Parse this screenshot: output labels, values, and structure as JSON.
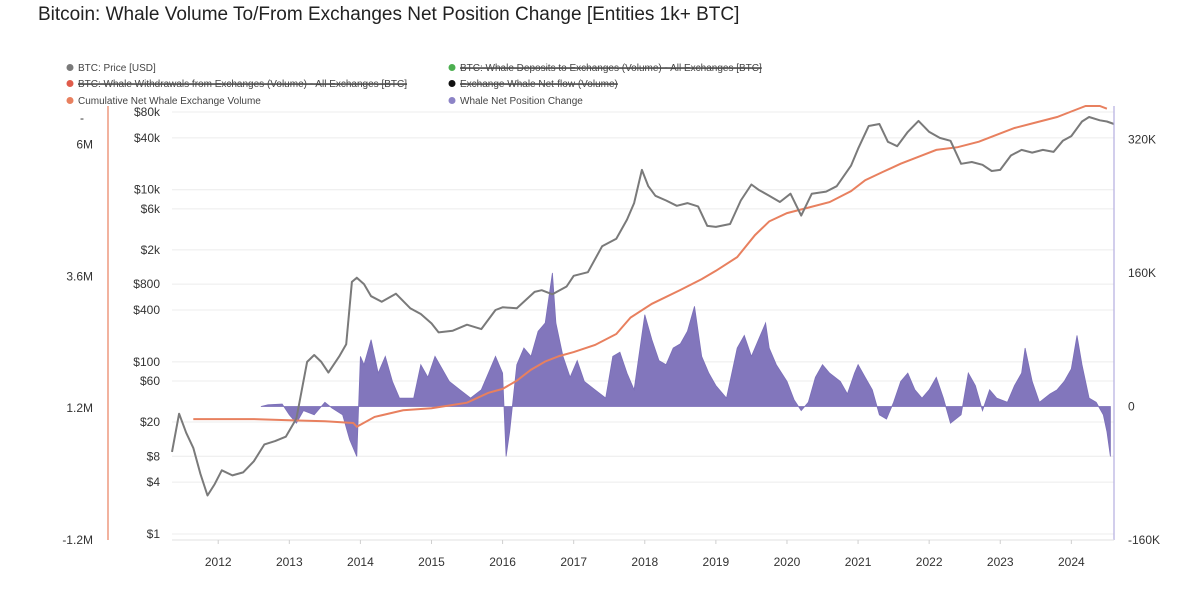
{
  "title": "Bitcoin: Whale Volume To/From Exchanges Net Position Change [Entities 1k+ BTC]",
  "colors": {
    "price": "#7a7a7a",
    "deposits": "#4caf50",
    "withdrawals": "#e05c4b",
    "netflow": "#111111",
    "cumulative": "#e8805f",
    "net_position": "#7b6fb8",
    "axis_line_left": "#e8805f",
    "axis_line_right": "#b4aee0"
  },
  "legend": [
    {
      "label": "BTC: Price [USD]",
      "color": "#7a7a7a",
      "struck": false
    },
    {
      "label": "BTC: Whale Deposits to Exchanges (Volume) - All Exchanges [BTC]",
      "color": "#4caf50",
      "struck": true
    },
    {
      "label": "BTC: Whale Withdrawals from Exchanges (Volume) - All Exchanges [BTC]",
      "color": "#e05c4b",
      "struck": true
    },
    {
      "label": "Exchange Whale Net-flow (Volume)",
      "color": "#111111",
      "struck": true
    },
    {
      "label": "Cumulative Net Whale Exchange Volume",
      "color": "#e8805f",
      "struck": false
    },
    {
      "label": "Whale Net Position Change",
      "color": "#8c83c6",
      "struck": false
    }
  ],
  "chart_data": {
    "type": "line",
    "title": "Bitcoin: Whale Volume To/From Exchanges Net Position Change [Entities 1k+ BTC]",
    "x_ticks": [
      "2012",
      "2013",
      "2014",
      "2015",
      "2016",
      "2017",
      "2018",
      "2019",
      "2020",
      "2021",
      "2022",
      "2023",
      "2024"
    ],
    "xlim": [
      2011.35,
      2024.6
    ],
    "axes": {
      "left_outer": {
        "ticks": [
          "6M",
          "3.6M",
          "1.2M",
          "-1.2M"
        ],
        "values": [
          6000000,
          3600000,
          1200000,
          -1200000
        ],
        "ylim": [
          -1200000,
          6700000
        ],
        "extra_label": "-"
      },
      "left_price": {
        "scale": "log",
        "ticks": [
          "$80k",
          "$40k",
          "$10k",
          "$6k",
          "$2k",
          "$800",
          "$400",
          "$100",
          "$60",
          "$20",
          "$8",
          "$4",
          "$1"
        ],
        "values": [
          80000,
          40000,
          10000,
          6000,
          2000,
          800,
          400,
          100,
          60,
          20,
          8,
          4,
          1
        ],
        "ylim": [
          1,
          80000
        ]
      },
      "right": {
        "ticks": [
          "320K",
          "160K",
          "0",
          "-160K"
        ],
        "values": [
          320000,
          160000,
          0,
          -160000
        ],
        "ylim": [
          -160000,
          360000
        ]
      }
    },
    "series": [
      {
        "name": "BTC: Price [USD]",
        "axis": "left_price",
        "points": [
          [
            2011.35,
            9
          ],
          [
            2011.45,
            25
          ],
          [
            2011.55,
            15
          ],
          [
            2011.65,
            10
          ],
          [
            2011.75,
            5
          ],
          [
            2011.85,
            2.8
          ],
          [
            2011.95,
            3.8
          ],
          [
            2012.05,
            5.5
          ],
          [
            2012.2,
            4.8
          ],
          [
            2012.35,
            5.2
          ],
          [
            2012.5,
            7
          ],
          [
            2012.65,
            11
          ],
          [
            2012.8,
            12
          ],
          [
            2012.95,
            13.5
          ],
          [
            2013.1,
            22
          ],
          [
            2013.25,
            100
          ],
          [
            2013.35,
            120
          ],
          [
            2013.45,
            100
          ],
          [
            2013.55,
            75
          ],
          [
            2013.7,
            115
          ],
          [
            2013.8,
            160
          ],
          [
            2013.88,
            850
          ],
          [
            2013.95,
            950
          ],
          [
            2014.05,
            800
          ],
          [
            2014.15,
            580
          ],
          [
            2014.3,
            500
          ],
          [
            2014.5,
            620
          ],
          [
            2014.7,
            420
          ],
          [
            2014.85,
            360
          ],
          [
            2015.0,
            280
          ],
          [
            2015.1,
            220
          ],
          [
            2015.3,
            230
          ],
          [
            2015.5,
            270
          ],
          [
            2015.7,
            240
          ],
          [
            2015.9,
            400
          ],
          [
            2016.0,
            430
          ],
          [
            2016.2,
            420
          ],
          [
            2016.45,
            650
          ],
          [
            2016.55,
            680
          ],
          [
            2016.7,
            610
          ],
          [
            2016.9,
            750
          ],
          [
            2017.0,
            1000
          ],
          [
            2017.2,
            1100
          ],
          [
            2017.4,
            2200
          ],
          [
            2017.6,
            2700
          ],
          [
            2017.75,
            4500
          ],
          [
            2017.85,
            7000
          ],
          [
            2017.96,
            17000
          ],
          [
            2018.05,
            11000
          ],
          [
            2018.15,
            8500
          ],
          [
            2018.3,
            7500
          ],
          [
            2018.45,
            6500
          ],
          [
            2018.6,
            7000
          ],
          [
            2018.75,
            6400
          ],
          [
            2018.88,
            3800
          ],
          [
            2019.0,
            3700
          ],
          [
            2019.2,
            4000
          ],
          [
            2019.35,
            7500
          ],
          [
            2019.5,
            11500
          ],
          [
            2019.6,
            10000
          ],
          [
            2019.75,
            8500
          ],
          [
            2019.9,
            7200
          ],
          [
            2020.05,
            9000
          ],
          [
            2020.2,
            5000
          ],
          [
            2020.35,
            9000
          ],
          [
            2020.55,
            9500
          ],
          [
            2020.7,
            11000
          ],
          [
            2020.9,
            19000
          ],
          [
            2021.0,
            30000
          ],
          [
            2021.15,
            55000
          ],
          [
            2021.3,
            58000
          ],
          [
            2021.42,
            36000
          ],
          [
            2021.55,
            32000
          ],
          [
            2021.7,
            47000
          ],
          [
            2021.85,
            63000
          ],
          [
            2022.0,
            47000
          ],
          [
            2022.15,
            40000
          ],
          [
            2022.3,
            37000
          ],
          [
            2022.45,
            20000
          ],
          [
            2022.6,
            21000
          ],
          [
            2022.75,
            19500
          ],
          [
            2022.88,
            16500
          ],
          [
            2023.0,
            17000
          ],
          [
            2023.15,
            25000
          ],
          [
            2023.3,
            29000
          ],
          [
            2023.45,
            27000
          ],
          [
            2023.6,
            29000
          ],
          [
            2023.75,
            27500
          ],
          [
            2023.88,
            37000
          ],
          [
            2024.0,
            42000
          ],
          [
            2024.15,
            62000
          ],
          [
            2024.25,
            70000
          ],
          [
            2024.4,
            64000
          ],
          [
            2024.5,
            62000
          ],
          [
            2024.6,
            58000
          ]
        ]
      },
      {
        "name": "Cumulative Net Whale Exchange Volume",
        "axis": "left_outer",
        "points": [
          [
            2011.65,
            1000000
          ],
          [
            2012.0,
            1000000
          ],
          [
            2012.5,
            1000000
          ],
          [
            2013.0,
            980000
          ],
          [
            2013.5,
            960000
          ],
          [
            2013.9,
            930000
          ],
          [
            2013.95,
            860000
          ],
          [
            2014.2,
            1040000
          ],
          [
            2014.6,
            1160000
          ],
          [
            2015.0,
            1200000
          ],
          [
            2015.5,
            1300000
          ],
          [
            2015.8,
            1480000
          ],
          [
            2016.0,
            1550000
          ],
          [
            2016.2,
            1700000
          ],
          [
            2016.4,
            1900000
          ],
          [
            2016.6,
            2050000
          ],
          [
            2016.8,
            2150000
          ],
          [
            2017.0,
            2220000
          ],
          [
            2017.3,
            2350000
          ],
          [
            2017.6,
            2550000
          ],
          [
            2017.8,
            2850000
          ],
          [
            2018.1,
            3100000
          ],
          [
            2018.5,
            3350000
          ],
          [
            2018.8,
            3550000
          ],
          [
            2019.0,
            3700000
          ],
          [
            2019.3,
            3950000
          ],
          [
            2019.55,
            4350000
          ],
          [
            2019.75,
            4600000
          ],
          [
            2020.0,
            4750000
          ],
          [
            2020.3,
            4850000
          ],
          [
            2020.6,
            4950000
          ],
          [
            2020.9,
            5150000
          ],
          [
            2021.1,
            5350000
          ],
          [
            2021.35,
            5500000
          ],
          [
            2021.6,
            5650000
          ],
          [
            2021.9,
            5800000
          ],
          [
            2022.1,
            5900000
          ],
          [
            2022.4,
            5950000
          ],
          [
            2022.7,
            6050000
          ],
          [
            2022.9,
            6150000
          ],
          [
            2023.2,
            6300000
          ],
          [
            2023.5,
            6400000
          ],
          [
            2023.8,
            6500000
          ],
          [
            2024.0,
            6600000
          ],
          [
            2024.2,
            6700000
          ],
          [
            2024.4,
            6700000
          ],
          [
            2024.5,
            6650000
          ]
        ]
      },
      {
        "name": "Whale Net Position Change",
        "axis": "right",
        "type": "area",
        "points": [
          [
            2012.6,
            0
          ],
          [
            2012.7,
            2000
          ],
          [
            2012.9,
            3000
          ],
          [
            2013.0,
            -10000
          ],
          [
            2013.1,
            -20000
          ],
          [
            2013.2,
            -5000
          ],
          [
            2013.35,
            -10000
          ],
          [
            2013.5,
            5000
          ],
          [
            2013.6,
            -2000
          ],
          [
            2013.75,
            -10000
          ],
          [
            2013.85,
            -40000
          ],
          [
            2013.9,
            -50000
          ],
          [
            2013.95,
            -60000
          ],
          [
            2014.0,
            60000
          ],
          [
            2014.05,
            50000
          ],
          [
            2014.15,
            80000
          ],
          [
            2014.25,
            40000
          ],
          [
            2014.35,
            60000
          ],
          [
            2014.45,
            30000
          ],
          [
            2014.55,
            10000
          ],
          [
            2014.75,
            10000
          ],
          [
            2014.85,
            50000
          ],
          [
            2014.95,
            35000
          ],
          [
            2015.05,
            60000
          ],
          [
            2015.15,
            45000
          ],
          [
            2015.25,
            30000
          ],
          [
            2015.4,
            20000
          ],
          [
            2015.55,
            10000
          ],
          [
            2015.7,
            20000
          ],
          [
            2015.8,
            40000
          ],
          [
            2015.9,
            60000
          ],
          [
            2016.0,
            40000
          ],
          [
            2016.05,
            -60000
          ],
          [
            2016.1,
            -30000
          ],
          [
            2016.2,
            50000
          ],
          [
            2016.3,
            70000
          ],
          [
            2016.4,
            60000
          ],
          [
            2016.5,
            90000
          ],
          [
            2016.6,
            100000
          ],
          [
            2016.7,
            160000
          ],
          [
            2016.75,
            100000
          ],
          [
            2016.85,
            60000
          ],
          [
            2016.95,
            35000
          ],
          [
            2017.05,
            55000
          ],
          [
            2017.15,
            30000
          ],
          [
            2017.3,
            20000
          ],
          [
            2017.45,
            10000
          ],
          [
            2017.55,
            60000
          ],
          [
            2017.65,
            65000
          ],
          [
            2017.75,
            40000
          ],
          [
            2017.85,
            20000
          ],
          [
            2018.0,
            110000
          ],
          [
            2018.1,
            80000
          ],
          [
            2018.2,
            55000
          ],
          [
            2018.3,
            50000
          ],
          [
            2018.4,
            70000
          ],
          [
            2018.5,
            75000
          ],
          [
            2018.6,
            90000
          ],
          [
            2018.7,
            120000
          ],
          [
            2018.8,
            60000
          ],
          [
            2018.9,
            40000
          ],
          [
            2019.0,
            25000
          ],
          [
            2019.15,
            10000
          ],
          [
            2019.3,
            70000
          ],
          [
            2019.4,
            85000
          ],
          [
            2019.5,
            60000
          ],
          [
            2019.6,
            80000
          ],
          [
            2019.7,
            100000
          ],
          [
            2019.75,
            70000
          ],
          [
            2019.85,
            50000
          ],
          [
            2020.0,
            30000
          ],
          [
            2020.1,
            8000
          ],
          [
            2020.2,
            -5000
          ],
          [
            2020.3,
            5000
          ],
          [
            2020.4,
            35000
          ],
          [
            2020.5,
            50000
          ],
          [
            2020.6,
            40000
          ],
          [
            2020.75,
            30000
          ],
          [
            2020.85,
            15000
          ],
          [
            2020.95,
            40000
          ],
          [
            2021.0,
            50000
          ],
          [
            2021.1,
            35000
          ],
          [
            2021.2,
            20000
          ],
          [
            2021.3,
            -10000
          ],
          [
            2021.4,
            -15000
          ],
          [
            2021.5,
            5000
          ],
          [
            2021.6,
            30000
          ],
          [
            2021.7,
            40000
          ],
          [
            2021.8,
            20000
          ],
          [
            2021.9,
            10000
          ],
          [
            2022.0,
            20000
          ],
          [
            2022.1,
            35000
          ],
          [
            2022.2,
            10000
          ],
          [
            2022.3,
            -20000
          ],
          [
            2022.45,
            -10000
          ],
          [
            2022.55,
            40000
          ],
          [
            2022.65,
            25000
          ],
          [
            2022.75,
            -5000
          ],
          [
            2022.85,
            20000
          ],
          [
            2022.95,
            10000
          ],
          [
            2023.1,
            5000
          ],
          [
            2023.2,
            25000
          ],
          [
            2023.3,
            40000
          ],
          [
            2023.35,
            70000
          ],
          [
            2023.45,
            30000
          ],
          [
            2023.55,
            5000
          ],
          [
            2023.7,
            15000
          ],
          [
            2023.8,
            20000
          ],
          [
            2023.9,
            30000
          ],
          [
            2024.0,
            45000
          ],
          [
            2024.08,
            85000
          ],
          [
            2024.15,
            50000
          ],
          [
            2024.25,
            10000
          ],
          [
            2024.35,
            5000
          ],
          [
            2024.45,
            -10000
          ],
          [
            2024.5,
            -30000
          ],
          [
            2024.55,
            -60000
          ]
        ]
      }
    ]
  }
}
